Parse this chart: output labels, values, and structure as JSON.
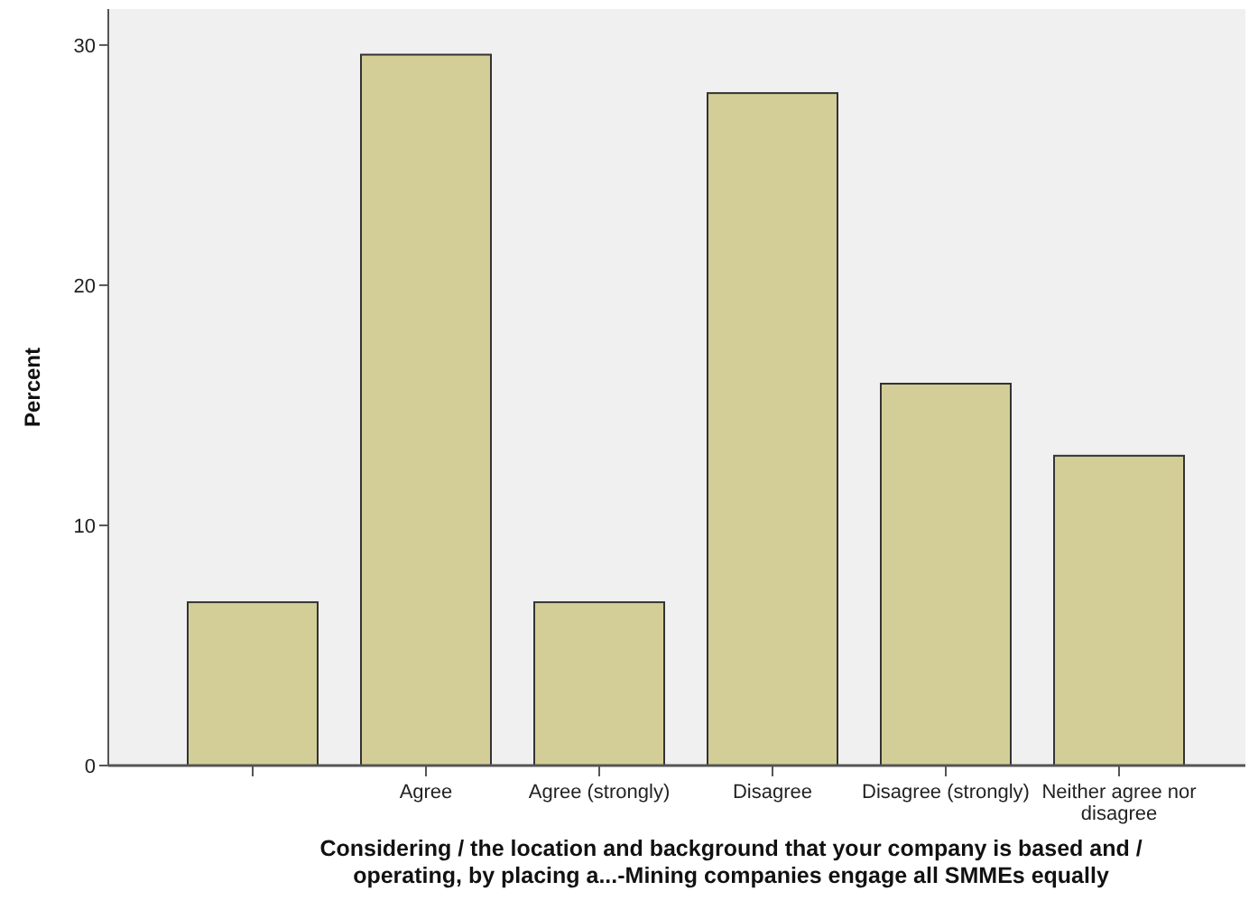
{
  "chart_data": {
    "type": "bar",
    "xlabel": "Considering /  the location and background that your company is based and / operating, by placing a...-Mining companies engage all SMMEs equally",
    "ylabel": "Percent",
    "categories": [
      null,
      "Agree",
      "Agree (strongly)",
      "Disagree",
      "Disagree (strongly)",
      "Neither agree nor disagree"
    ],
    "values": [
      6.8,
      29.6,
      6.8,
      28.0,
      15.9,
      12.9
    ],
    "color": "#d3ce97",
    "ylim": [
      0,
      31.5
    ],
    "yticks": [
      0,
      10,
      20,
      30
    ],
    "grid": false
  }
}
